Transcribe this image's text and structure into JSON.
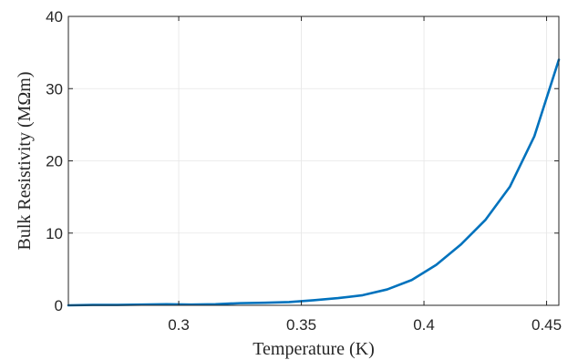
{
  "chart_data": {
    "type": "line",
    "title": "",
    "xlabel": "Temperature (K)",
    "ylabel": "Bulk Resistivity (MΩm)",
    "xlim": [
      0.255,
      0.455
    ],
    "ylim": [
      0,
      40
    ],
    "xticks": [
      0.3,
      0.35,
      0.4,
      0.45
    ],
    "xtick_labels": [
      "0.3",
      "0.35",
      "0.4",
      "0.45"
    ],
    "yticks": [
      0,
      10,
      20,
      30,
      40
    ],
    "ytick_labels": [
      "0",
      "10",
      "20",
      "30",
      "40"
    ],
    "grid": true,
    "legend": "none",
    "series_color": "#0072bd",
    "series": [
      {
        "x": [
          0.255,
          0.265,
          0.275,
          0.285,
          0.295,
          0.305,
          0.315,
          0.325,
          0.335,
          0.345,
          0.355,
          0.365,
          0.375,
          0.385,
          0.395,
          0.405,
          0.415,
          0.425,
          0.435,
          0.445,
          0.455
        ],
        "y": [
          0.0,
          0.05,
          0.05,
          0.1,
          0.15,
          0.1,
          0.15,
          0.3,
          0.35,
          0.45,
          0.7,
          1.0,
          1.4,
          2.2,
          3.5,
          5.6,
          8.4,
          11.8,
          16.4,
          23.4,
          34.0
        ]
      }
    ]
  }
}
